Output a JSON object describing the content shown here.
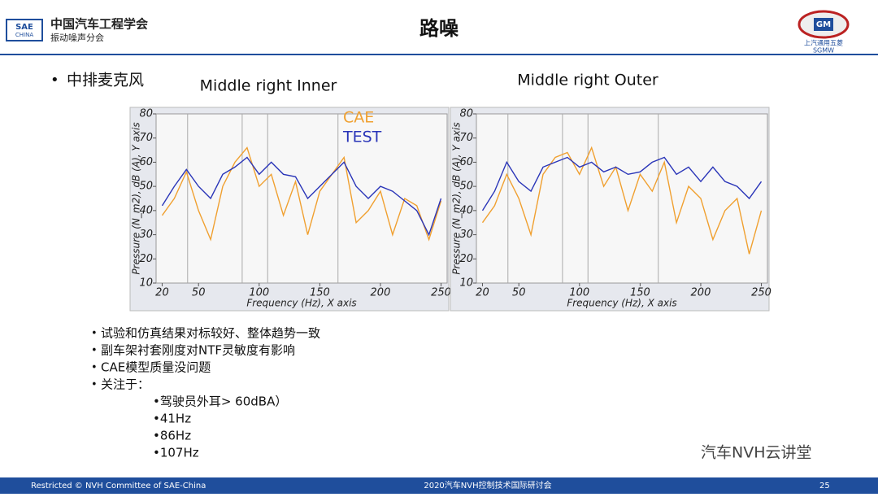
{
  "header": {
    "org_name": "中国汽车工程学会",
    "org_sub": "振动噪声分会",
    "logo_left": "SAE",
    "logo_left_sub": "CHINA",
    "title": "路噪",
    "logo_right_mark": "GM",
    "logo_right_name": "上汽通用五菱",
    "logo_right_abbr": "SGMW"
  },
  "section": "中排麦克风",
  "chart_data": [
    {
      "type": "line",
      "title": "Middle right Inner",
      "x_label": "Frequency (Hz), X axis",
      "y_label": "Pressure (N_m2), dB (A), Y axis",
      "xlim": [
        15,
        255
      ],
      "xticks": [
        20,
        50,
        100,
        150,
        200,
        250
      ],
      "ylim": [
        10,
        80
      ],
      "yticks": [
        10,
        20,
        30,
        40,
        50,
        60,
        70,
        80
      ],
      "markers": [
        41,
        86,
        107,
        165
      ],
      "x": [
        20,
        30,
        40,
        50,
        60,
        70,
        80,
        90,
        100,
        110,
        120,
        130,
        140,
        150,
        160,
        170,
        180,
        190,
        200,
        210,
        220,
        230,
        240,
        250
      ],
      "series": [
        {
          "name": "CAE",
          "color": "#f0a030",
          "values": [
            38,
            45,
            56,
            40,
            28,
            50,
            60,
            66,
            50,
            55,
            38,
            52,
            30,
            48,
            55,
            62,
            35,
            40,
            48,
            30,
            45,
            42,
            28,
            44
          ]
        },
        {
          "name": "TEST",
          "color": "#2a35b8",
          "values": [
            42,
            50,
            57,
            50,
            45,
            55,
            58,
            62,
            55,
            60,
            55,
            54,
            45,
            50,
            55,
            60,
            50,
            45,
            50,
            48,
            44,
            40,
            30,
            45
          ]
        }
      ]
    },
    {
      "type": "line",
      "title": "Middle right Outer",
      "x_label": "Frequency (Hz), X axis",
      "y_label": "Pressure (N_m2), dB (A), Y axis",
      "xlim": [
        15,
        255
      ],
      "xticks": [
        20,
        50,
        100,
        150,
        200,
        250
      ],
      "ylim": [
        10,
        80
      ],
      "yticks": [
        10,
        20,
        30,
        40,
        50,
        60,
        70,
        80
      ],
      "markers": [
        41,
        86,
        107,
        165
      ],
      "x": [
        20,
        30,
        40,
        50,
        60,
        70,
        80,
        90,
        100,
        110,
        120,
        130,
        140,
        150,
        160,
        170,
        180,
        190,
        200,
        210,
        220,
        230,
        240,
        250
      ],
      "series": [
        {
          "color": "#f0a030",
          "values": [
            35,
            42,
            55,
            45,
            30,
            55,
            62,
            64,
            55,
            66,
            50,
            58,
            40,
            55,
            48,
            60,
            35,
            50,
            45,
            28,
            40,
            45,
            22,
            40
          ]
        },
        {
          "color": "#2a35b8",
          "values": [
            40,
            48,
            60,
            52,
            48,
            58,
            60,
            62,
            58,
            60,
            56,
            58,
            55,
            56,
            60,
            62,
            55,
            58,
            52,
            58,
            52,
            50,
            45,
            52
          ]
        }
      ]
    }
  ],
  "bullets": [
    "试验和仿真结果对标较好、整体趋势一致",
    "副车架衬套刚度对NTF灵敏度有影响",
    "CAE模型质量没问题",
    "关注于："
  ],
  "sub_bullets": [
    "•驾驶员外耳> 60dBA）",
    "•41Hz",
    "•86Hz",
    "•107Hz"
  ],
  "watermark": "汽车NVH云讲堂",
  "footer": {
    "left": "Restricted © NVH Committee of SAE-China",
    "center": "2020汽车NVH控制技术国际研讨会",
    "page": "25"
  }
}
